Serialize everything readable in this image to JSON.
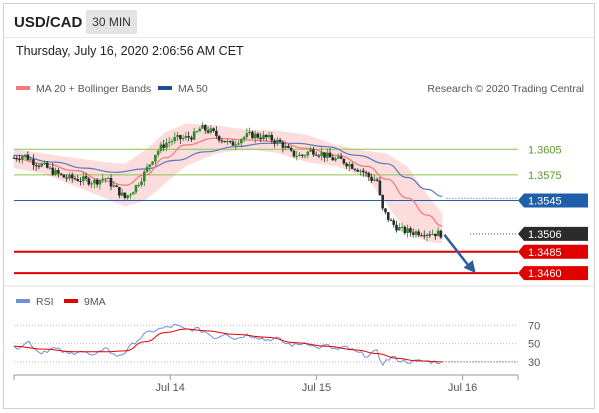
{
  "header": {
    "symbol": "USD/CAD",
    "timeframe": "30 MIN",
    "datetime": "Thursday, July 16, 2020 2:06:56 AM CET"
  },
  "legend": {
    "ma20": "MA 20 + Bollinger Bands",
    "ma50": "MA 50",
    "research": "Research © 2020 Trading Central",
    "rsi": "RSI",
    "rsi_ma": "9MA"
  },
  "colors": {
    "ma20": "#f07878",
    "bollinger": "#fbd3d3",
    "ma50": "#5a7ab8",
    "candle": "#2a2a2a",
    "up_candle": "#2d8a2d",
    "resistance": "#8cc44d",
    "pivot": "#1f5ea8",
    "support": "#e00000",
    "last": "#2b2b2b",
    "rsi": "#6f8fd8",
    "rsi_ma": "#e00000",
    "arrow": "#2f5e9e"
  },
  "chart_data": {
    "type": "candlestick",
    "x_ticks": [
      "Jul 14",
      "Jul 15",
      "Jul 16"
    ],
    "y_ticks": [
      "1.3605",
      "1.3575",
      "1.3545",
      "1.3506",
      "1.3485",
      "1.3460"
    ],
    "ylim": [
      1.3452,
      1.3658
    ],
    "levels": [
      {
        "name": "resistance-2",
        "value": 1.3605,
        "label": "1.3605",
        "color": "#8cc44d",
        "style": "line"
      },
      {
        "name": "resistance-1",
        "value": 1.3575,
        "label": "1.3575",
        "color": "#8cc44d",
        "style": "line"
      },
      {
        "name": "pivot",
        "value": 1.3545,
        "label": "1.3545",
        "color": "#1f5ea8",
        "style": "tag"
      },
      {
        "name": "last-price",
        "value": 1.3506,
        "label": "1.3506",
        "color": "#2b2b2b",
        "style": "tag"
      },
      {
        "name": "support-1",
        "value": 1.3485,
        "label": "1.3485",
        "color": "#e00000",
        "style": "tag"
      },
      {
        "name": "support-2",
        "value": 1.346,
        "label": "1.3460",
        "color": "#e00000",
        "style": "tag"
      }
    ],
    "close_path": [
      [
        0,
        1.3595
      ],
      [
        2,
        1.3598
      ],
      [
        4,
        1.359
      ],
      [
        6,
        1.3585
      ],
      [
        8,
        1.3578
      ],
      [
        10,
        1.3572
      ],
      [
        13,
        1.357
      ],
      [
        16,
        1.3567
      ],
      [
        18,
        1.3572
      ],
      [
        20,
        1.356
      ],
      [
        22,
        1.3548
      ],
      [
        24,
        1.356
      ],
      [
        26,
        1.3578
      ],
      [
        28,
        1.36
      ],
      [
        30,
        1.3612
      ],
      [
        32,
        1.3617
      ],
      [
        34,
        1.3618
      ],
      [
        36,
        1.3622
      ],
      [
        37,
        1.363
      ],
      [
        39,
        1.3626
      ],
      [
        41,
        1.3618
      ],
      [
        43,
        1.361
      ],
      [
        45,
        1.3618
      ],
      [
        47,
        1.3622
      ],
      [
        49,
        1.362
      ],
      [
        51,
        1.3617
      ],
      [
        53,
        1.3612
      ],
      [
        55,
        1.36
      ],
      [
        57,
        1.3597
      ],
      [
        59,
        1.3604
      ],
      [
        61,
        1.36
      ],
      [
        63,
        1.3594
      ],
      [
        65,
        1.3592
      ],
      [
        67,
        1.3586
      ],
      [
        69,
        1.358
      ],
      [
        71,
        1.357
      ],
      [
        72,
        1.357
      ],
      [
        73,
        1.3535
      ],
      [
        75,
        1.3518
      ],
      [
        77,
        1.351
      ],
      [
        79,
        1.3508
      ],
      [
        81,
        1.3508
      ],
      [
        83,
        1.3507
      ],
      [
        85,
        1.3506
      ]
    ],
    "ma20": [
      [
        0,
        1.3594
      ],
      [
        6,
        1.3588
      ],
      [
        12,
        1.358
      ],
      [
        18,
        1.3568
      ],
      [
        22,
        1.3563
      ],
      [
        26,
        1.3575
      ],
      [
        30,
        1.3595
      ],
      [
        34,
        1.361
      ],
      [
        40,
        1.3618
      ],
      [
        46,
        1.3616
      ],
      [
        52,
        1.3614
      ],
      [
        58,
        1.3606
      ],
      [
        64,
        1.3598
      ],
      [
        70,
        1.3585
      ],
      [
        74,
        1.357
      ],
      [
        78,
        1.3548
      ],
      [
        82,
        1.3528
      ],
      [
        85,
        1.3515
      ]
    ],
    "bollinger_upper": [
      [
        0,
        1.3605
      ],
      [
        6,
        1.36
      ],
      [
        12,
        1.3595
      ],
      [
        18,
        1.359
      ],
      [
        22,
        1.3588
      ],
      [
        26,
        1.3604
      ],
      [
        30,
        1.3625
      ],
      [
        34,
        1.3635
      ],
      [
        40,
        1.3633
      ],
      [
        46,
        1.3628
      ],
      [
        52,
        1.3627
      ],
      [
        58,
        1.3622
      ],
      [
        64,
        1.361
      ],
      [
        70,
        1.3603
      ],
      [
        74,
        1.36
      ],
      [
        78,
        1.3585
      ],
      [
        82,
        1.3552
      ],
      [
        85,
        1.353
      ]
    ],
    "bollinger_lower": [
      [
        0,
        1.3583
      ],
      [
        6,
        1.3576
      ],
      [
        12,
        1.3562
      ],
      [
        18,
        1.3548
      ],
      [
        22,
        1.3538
      ],
      [
        26,
        1.3545
      ],
      [
        30,
        1.3565
      ],
      [
        34,
        1.3585
      ],
      [
        40,
        1.36
      ],
      [
        46,
        1.3605
      ],
      [
        52,
        1.3601
      ],
      [
        58,
        1.359
      ],
      [
        64,
        1.3585
      ],
      [
        70,
        1.3572
      ],
      [
        74,
        1.354
      ],
      [
        78,
        1.3508
      ],
      [
        82,
        1.3497
      ],
      [
        85,
        1.3495
      ]
    ],
    "ma50": [
      [
        0,
        1.3598
      ],
      [
        8,
        1.359
      ],
      [
        14,
        1.3583
      ],
      [
        20,
        1.3578
      ],
      [
        26,
        1.3582
      ],
      [
        32,
        1.3592
      ],
      [
        38,
        1.3602
      ],
      [
        44,
        1.3608
      ],
      [
        50,
        1.3612
      ],
      [
        56,
        1.3612
      ],
      [
        62,
        1.3608
      ],
      [
        68,
        1.3598
      ],
      [
        74,
        1.3588
      ],
      [
        78,
        1.3572
      ],
      [
        82,
        1.3558
      ],
      [
        85,
        1.355
      ]
    ],
    "forecast": {
      "from": [
        85,
        1.3505
      ],
      "to": [
        92,
        1.346
      ]
    },
    "rsi": {
      "y_ticks": [
        70,
        50,
        30
      ],
      "ylim": [
        20,
        78
      ],
      "rsi": [
        [
          0,
          45
        ],
        [
          3,
          52
        ],
        [
          5,
          40
        ],
        [
          8,
          45
        ],
        [
          11,
          38
        ],
        [
          13,
          43
        ],
        [
          16,
          35
        ],
        [
          18,
          47
        ],
        [
          20,
          36
        ],
        [
          22,
          40
        ],
        [
          24,
          52
        ],
        [
          26,
          60
        ],
        [
          28,
          65
        ],
        [
          30,
          67
        ],
        [
          32,
          70
        ],
        [
          34,
          65
        ],
        [
          36,
          66
        ],
        [
          38,
          63
        ],
        [
          40,
          56
        ],
        [
          42,
          62
        ],
        [
          44,
          55
        ],
        [
          46,
          60
        ],
        [
          48,
          58
        ],
        [
          50,
          54
        ],
        [
          52,
          56
        ],
        [
          54,
          50
        ],
        [
          56,
          48
        ],
        [
          58,
          52
        ],
        [
          60,
          45
        ],
        [
          62,
          48
        ],
        [
          64,
          43
        ],
        [
          66,
          46
        ],
        [
          68,
          40
        ],
        [
          70,
          37
        ],
        [
          72,
          41
        ],
        [
          73,
          28
        ],
        [
          75,
          35
        ],
        [
          77,
          31
        ],
        [
          79,
          30
        ],
        [
          81,
          31
        ],
        [
          83,
          30
        ],
        [
          85,
          30
        ]
      ],
      "ma": [
        [
          0,
          47
        ],
        [
          6,
          44
        ],
        [
          12,
          41
        ],
        [
          18,
          41
        ],
        [
          22,
          42
        ],
        [
          26,
          52
        ],
        [
          30,
          62
        ],
        [
          34,
          66
        ],
        [
          38,
          64
        ],
        [
          44,
          60
        ],
        [
          50,
          57
        ],
        [
          56,
          51
        ],
        [
          62,
          47
        ],
        [
          68,
          43
        ],
        [
          72,
          39
        ],
        [
          76,
          34
        ],
        [
          80,
          31
        ],
        [
          85,
          30
        ]
      ]
    }
  }
}
